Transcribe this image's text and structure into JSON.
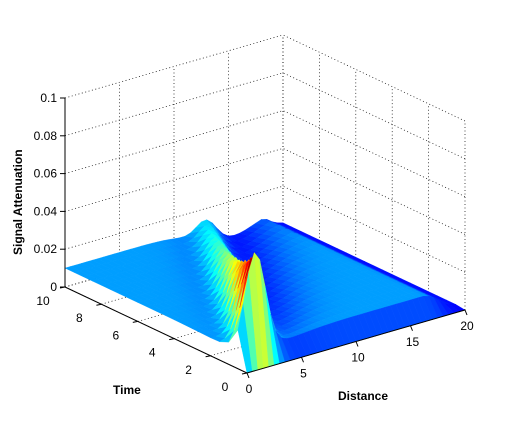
{
  "chart_data": {
    "type": "surface3d",
    "title": "",
    "xlabel": "Distance",
    "ylabel": "Time",
    "zlabel": "Signal Attenuation",
    "xlim": [
      0,
      20
    ],
    "ylim": [
      0,
      10
    ],
    "zlim": [
      0,
      0.1
    ],
    "xticks": [
      "0",
      "5",
      "10",
      "15",
      "20"
    ],
    "yticks": [
      "0",
      "2",
      "4",
      "6",
      "8",
      "10"
    ],
    "zticks": [
      "0",
      "0.02",
      "0.04",
      "0.06",
      "0.08",
      "0.1"
    ],
    "grid": true,
    "colormap": "jet",
    "surface": {
      "baseline_level": 0.01,
      "peak_value": 0.055,
      "peak_distance": 0,
      "peak_time": 0,
      "description_values": {
        "distance_points": [
          0,
          5,
          10,
          15,
          20
        ],
        "time_points": [
          0,
          2,
          4,
          6,
          8,
          10
        ]
      }
    }
  }
}
